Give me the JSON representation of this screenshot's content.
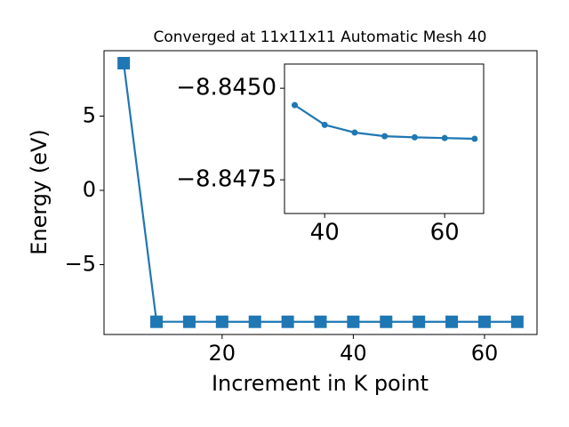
{
  "chart_data": [
    {
      "type": "line",
      "title": "Converged at 11x11x11 Automatic Mesh 40",
      "xlabel": "Increment in K point",
      "ylabel": "Energy (eV)",
      "x": [
        5,
        10,
        15,
        20,
        25,
        30,
        35,
        40,
        45,
        50,
        55,
        60,
        65
      ],
      "series": [
        {
          "color": "#1f77b4",
          "marker": "square",
          "values": [
            8.56,
            -8.844,
            -8.8445,
            -8.8447,
            -8.8449,
            -8.845,
            -8.84546,
            -8.846,
            -8.84621,
            -8.84631,
            -8.84634,
            -8.84636,
            -8.84638
          ]
        }
      ],
      "xlim": [
        2,
        68
      ],
      "ylim": [
        -9.7,
        9.4
      ],
      "xticks": [
        20,
        40,
        60
      ],
      "yticks": [
        {
          "value": -5,
          "label": "−5"
        },
        0,
        5
      ]
    },
    {
      "type": "line",
      "x": [
        35,
        40,
        45,
        50,
        55,
        60,
        65
      ],
      "series": [
        {
          "color": "#1f77b4",
          "marker": "circle",
          "values": [
            -8.84546,
            -8.846,
            -8.84621,
            -8.84631,
            -8.84634,
            -8.84636,
            -8.84638
          ]
        }
      ],
      "xlim": [
        33.3,
        66.5
      ],
      "ylim": [
        -8.84434,
        -8.84842
      ],
      "invert_y": true,
      "xticks": [
        40,
        60
      ],
      "yticks": [
        {
          "value": -8.845,
          "label": "−8.8450"
        },
        {
          "value": -8.8475,
          "label": "−8.8475"
        }
      ]
    }
  ]
}
